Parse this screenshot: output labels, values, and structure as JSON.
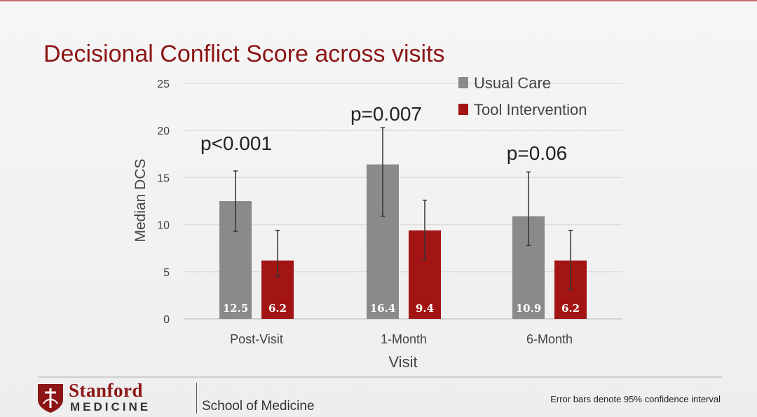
{
  "slide": {
    "title": "Decisional Conflict Score across visits",
    "footnote": "Error bars denote 95% confidence interval",
    "logo": {
      "stanford": "Stanford",
      "medicine": "MEDICINE",
      "school": "School of Medicine"
    }
  },
  "chart_data": {
    "type": "bar",
    "title": "Decisional Conflict Score across visits",
    "xlabel": "Visit",
    "ylabel": "Median DCS",
    "ylim": [
      0,
      25
    ],
    "yticks": [
      0,
      5,
      10,
      15,
      20,
      25
    ],
    "grid": true,
    "legend_position": "top-right",
    "categories": [
      "Post-Visit",
      "1-Month",
      "6-Month"
    ],
    "series": [
      {
        "name": "Usual Care",
        "color": "#8a8a8a",
        "values": [
          12.5,
          16.4,
          10.9
        ],
        "labels": [
          "12.5",
          "16.4",
          "10.9"
        ],
        "ci_low": [
          9.3,
          10.9,
          7.8
        ],
        "ci_high": [
          15.7,
          20.3,
          15.6
        ]
      },
      {
        "name": "Tool Intervention",
        "color": "#a31515",
        "values": [
          6.2,
          9.4,
          6.2
        ],
        "labels": [
          "6.2",
          "9.4",
          "6.2"
        ],
        "ci_low": [
          4.5,
          6.3,
          3.1
        ],
        "ci_high": [
          9.4,
          12.6,
          9.4
        ]
      }
    ],
    "annotations": [
      "p<0.001",
      "p=0.007",
      "p=0.06"
    ]
  }
}
